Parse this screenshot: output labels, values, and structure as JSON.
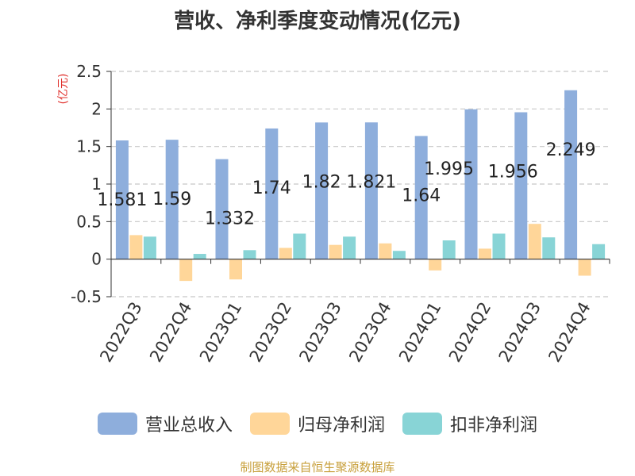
{
  "chart_data": {
    "type": "bar",
    "title": "营收、净利季度变动情况(亿元)",
    "ylabel": "(亿元)",
    "ylim": [
      -0.5,
      2.5
    ],
    "yticks": [
      "2.5",
      "2",
      "1.5",
      "1",
      "0.5",
      "0",
      "-0.5"
    ],
    "categories": [
      "2022Q3",
      "2022Q4",
      "2023Q1",
      "2023Q2",
      "2023Q3",
      "2023Q4",
      "2024Q1",
      "2024Q2",
      "2024Q3",
      "2024Q4"
    ],
    "series": [
      {
        "name": "营业总收入",
        "color": "#8eaedc",
        "values": [
          1.581,
          1.59,
          1.332,
          1.74,
          1.82,
          1.821,
          1.64,
          1.995,
          1.956,
          2.249
        ],
        "labels": [
          "1.581",
          "1.59",
          "1.332",
          "1.74",
          "1.82",
          "1.821",
          "1.64",
          "1.995",
          "1.956",
          "2.249"
        ]
      },
      {
        "name": "归母净利润",
        "color": "#ffd699",
        "values": [
          0.32,
          -0.29,
          -0.27,
          0.15,
          0.19,
          0.21,
          -0.15,
          0.14,
          0.47,
          -0.22
        ]
      },
      {
        "name": "扣非净利润",
        "color": "#88d4d6",
        "values": [
          0.3,
          0.07,
          0.12,
          0.34,
          0.3,
          0.11,
          0.25,
          0.34,
          0.29,
          0.2
        ]
      }
    ],
    "grid": true,
    "legend_position": "bottom"
  },
  "source_note": "制图数据来自恒生聚源数据库"
}
